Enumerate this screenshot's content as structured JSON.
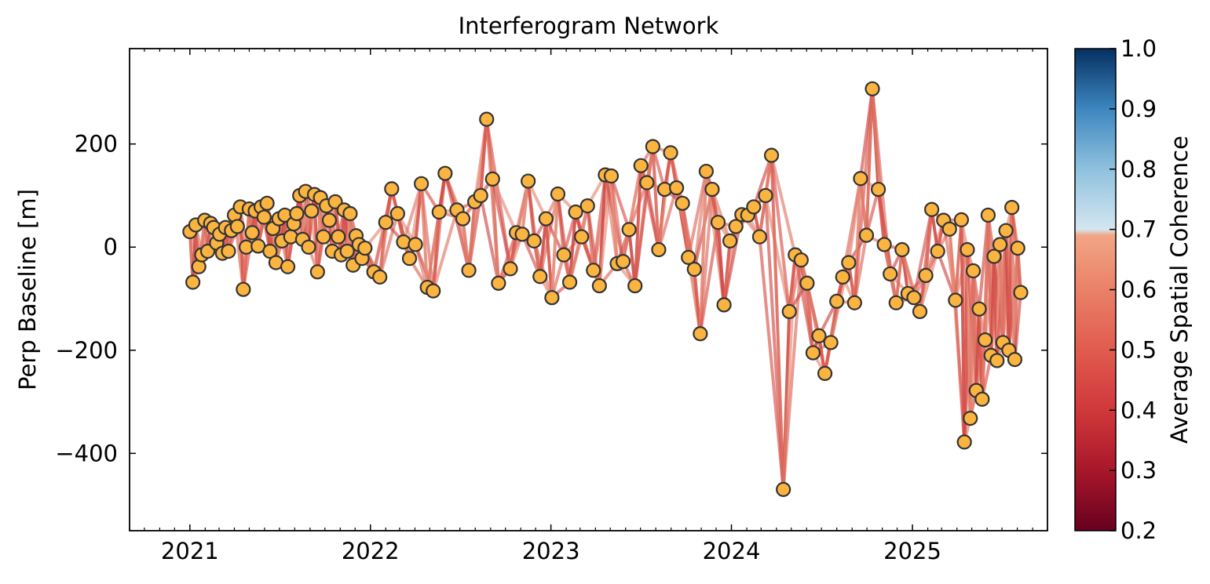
{
  "chart_data": {
    "type": "scatter",
    "title": "Interferogram Network",
    "xlabel": "",
    "ylabel": "Perp Baseline [m]",
    "xlim": [
      "2020-09-01",
      "2025-10-01"
    ],
    "ylim": [
      -550,
      385
    ],
    "x_ticks": [
      {
        "date": "2021-01-01",
        "label": "2021"
      },
      {
        "date": "2022-01-01",
        "label": "2022"
      },
      {
        "date": "2023-01-01",
        "label": "2023"
      },
      {
        "date": "2024-01-01",
        "label": "2024"
      },
      {
        "date": "2025-01-01",
        "label": "2025"
      }
    ],
    "y_ticks": [
      {
        "value": 200,
        "label": "200"
      },
      {
        "value": 0,
        "label": "0"
      },
      {
        "value": -200,
        "label": "−200"
      },
      {
        "value": -400,
        "label": "−400"
      }
    ],
    "grid": false,
    "legend": "none",
    "marker_color": "#fbb440",
    "marker_edge_color": "#333333",
    "colorbar": {
      "label": "Average Spatial Coherence",
      "range": [
        0.2,
        1.0
      ],
      "ticks": [
        {
          "value": 0.2,
          "label": "0.2"
        },
        {
          "value": 0.3,
          "label": "0.3"
        },
        {
          "value": 0.4,
          "label": "0.4"
        },
        {
          "value": 0.5,
          "label": "0.5"
        },
        {
          "value": 0.6,
          "label": "0.6"
        },
        {
          "value": 0.7,
          "label": "0.7"
        },
        {
          "value": 0.8,
          "label": "0.8"
        },
        {
          "value": 0.9,
          "label": "0.9"
        },
        {
          "value": 1.0,
          "label": "1.0"
        }
      ],
      "stops": [
        {
          "value": 0.2,
          "color": "#67001f"
        },
        {
          "value": 0.3,
          "color": "#a8172a"
        },
        {
          "value": 0.4,
          "color": "#d0383a"
        },
        {
          "value": 0.5,
          "color": "#e15b4f"
        },
        {
          "value": 0.6,
          "color": "#ea8168"
        },
        {
          "value": 0.69,
          "color": "#f2a585"
        },
        {
          "value": 0.7,
          "color": "#d4e6f1"
        },
        {
          "value": 0.8,
          "color": "#8fc1de"
        },
        {
          "value": 0.9,
          "color": "#3d86bf"
        },
        {
          "value": 1.0,
          "color": "#053061"
        }
      ]
    },
    "points": [
      {
        "date": "2021-01-01",
        "value": 30
      },
      {
        "date": "2021-01-07",
        "value": -68
      },
      {
        "date": "2021-01-13",
        "value": 43
      },
      {
        "date": "2021-01-19",
        "value": -38
      },
      {
        "date": "2021-01-25",
        "value": -15
      },
      {
        "date": "2021-01-31",
        "value": 52
      },
      {
        "date": "2021-02-06",
        "value": -8
      },
      {
        "date": "2021-02-12",
        "value": 46
      },
      {
        "date": "2021-02-18",
        "value": 38
      },
      {
        "date": "2021-02-24",
        "value": 8
      },
      {
        "date": "2021-03-02",
        "value": 25
      },
      {
        "date": "2021-03-08",
        "value": -12
      },
      {
        "date": "2021-03-14",
        "value": 38
      },
      {
        "date": "2021-03-20",
        "value": -8
      },
      {
        "date": "2021-03-26",
        "value": 32
      },
      {
        "date": "2021-04-01",
        "value": 62
      },
      {
        "date": "2021-04-07",
        "value": 40
      },
      {
        "date": "2021-04-13",
        "value": 78
      },
      {
        "date": "2021-04-19",
        "value": -82
      },
      {
        "date": "2021-04-25",
        "value": 0
      },
      {
        "date": "2021-05-01",
        "value": 74
      },
      {
        "date": "2021-05-07",
        "value": 28
      },
      {
        "date": "2021-05-13",
        "value": 70
      },
      {
        "date": "2021-05-19",
        "value": 2
      },
      {
        "date": "2021-05-25",
        "value": 78
      },
      {
        "date": "2021-05-31",
        "value": 58
      },
      {
        "date": "2021-06-06",
        "value": 85
      },
      {
        "date": "2021-06-12",
        "value": -8
      },
      {
        "date": "2021-06-18",
        "value": 36
      },
      {
        "date": "2021-06-24",
        "value": -30
      },
      {
        "date": "2021-06-30",
        "value": 55
      },
      {
        "date": "2021-07-06",
        "value": 12
      },
      {
        "date": "2021-07-12",
        "value": 62
      },
      {
        "date": "2021-07-18",
        "value": -38
      },
      {
        "date": "2021-07-24",
        "value": 20
      },
      {
        "date": "2021-07-30",
        "value": 45
      },
      {
        "date": "2021-08-05",
        "value": 65
      },
      {
        "date": "2021-08-11",
        "value": 100
      },
      {
        "date": "2021-08-17",
        "value": 15
      },
      {
        "date": "2021-08-23",
        "value": 108
      },
      {
        "date": "2021-08-29",
        "value": 0
      },
      {
        "date": "2021-09-04",
        "value": 70
      },
      {
        "date": "2021-09-10",
        "value": 102
      },
      {
        "date": "2021-09-16",
        "value": -48
      },
      {
        "date": "2021-09-22",
        "value": 96
      },
      {
        "date": "2021-09-28",
        "value": 20
      },
      {
        "date": "2021-10-04",
        "value": 80
      },
      {
        "date": "2021-10-10",
        "value": 52
      },
      {
        "date": "2021-10-16",
        "value": -8
      },
      {
        "date": "2021-10-22",
        "value": 88
      },
      {
        "date": "2021-10-28",
        "value": 20
      },
      {
        "date": "2021-11-03",
        "value": -15
      },
      {
        "date": "2021-11-09",
        "value": 72
      },
      {
        "date": "2021-11-15",
        "value": -8
      },
      {
        "date": "2021-11-21",
        "value": 65
      },
      {
        "date": "2021-11-27",
        "value": -35
      },
      {
        "date": "2021-12-03",
        "value": 22
      },
      {
        "date": "2021-12-09",
        "value": 5
      },
      {
        "date": "2021-12-15",
        "value": -22
      },
      {
        "date": "2021-12-21",
        "value": -2
      },
      {
        "date": "2022-01-08",
        "value": -48
      },
      {
        "date": "2022-01-20",
        "value": -58
      },
      {
        "date": "2022-02-01",
        "value": 48
      },
      {
        "date": "2022-02-13",
        "value": 113
      },
      {
        "date": "2022-02-25",
        "value": 65
      },
      {
        "date": "2022-03-09",
        "value": 10
      },
      {
        "date": "2022-03-21",
        "value": -22
      },
      {
        "date": "2022-04-02",
        "value": 5
      },
      {
        "date": "2022-04-14",
        "value": 123
      },
      {
        "date": "2022-04-26",
        "value": -78
      },
      {
        "date": "2022-05-08",
        "value": -85
      },
      {
        "date": "2022-05-20",
        "value": 68
      },
      {
        "date": "2022-06-01",
        "value": 143
      },
      {
        "date": "2022-06-25",
        "value": 72
      },
      {
        "date": "2022-07-07",
        "value": 55
      },
      {
        "date": "2022-07-19",
        "value": -45
      },
      {
        "date": "2022-07-31",
        "value": 88
      },
      {
        "date": "2022-08-12",
        "value": 100
      },
      {
        "date": "2022-08-24",
        "value": 248
      },
      {
        "date": "2022-09-05",
        "value": 132
      },
      {
        "date": "2022-09-17",
        "value": -70
      },
      {
        "date": "2022-10-11",
        "value": -42
      },
      {
        "date": "2022-10-23",
        "value": 28
      },
      {
        "date": "2022-11-04",
        "value": 25
      },
      {
        "date": "2022-11-16",
        "value": 128
      },
      {
        "date": "2022-11-28",
        "value": 12
      },
      {
        "date": "2022-12-10",
        "value": -57
      },
      {
        "date": "2022-12-22",
        "value": 55
      },
      {
        "date": "2023-01-03",
        "value": -98
      },
      {
        "date": "2023-01-15",
        "value": 103
      },
      {
        "date": "2023-01-27",
        "value": -15
      },
      {
        "date": "2023-02-08",
        "value": -68
      },
      {
        "date": "2023-02-20",
        "value": 68
      },
      {
        "date": "2023-03-04",
        "value": 20
      },
      {
        "date": "2023-03-16",
        "value": 80
      },
      {
        "date": "2023-03-28",
        "value": -45
      },
      {
        "date": "2023-04-09",
        "value": -75
      },
      {
        "date": "2023-04-21",
        "value": 140
      },
      {
        "date": "2023-05-03",
        "value": 138
      },
      {
        "date": "2023-05-15",
        "value": -32
      },
      {
        "date": "2023-05-27",
        "value": -28
      },
      {
        "date": "2023-06-08",
        "value": 34
      },
      {
        "date": "2023-06-20",
        "value": -75
      },
      {
        "date": "2023-07-02",
        "value": 158
      },
      {
        "date": "2023-07-14",
        "value": 125
      },
      {
        "date": "2023-07-26",
        "value": 195
      },
      {
        "date": "2023-08-07",
        "value": -5
      },
      {
        "date": "2023-08-19",
        "value": 112
      },
      {
        "date": "2023-08-31",
        "value": 183
      },
      {
        "date": "2023-09-12",
        "value": 115
      },
      {
        "date": "2023-09-24",
        "value": 85
      },
      {
        "date": "2023-10-06",
        "value": -20
      },
      {
        "date": "2023-10-18",
        "value": -43
      },
      {
        "date": "2023-10-30",
        "value": -168
      },
      {
        "date": "2023-11-11",
        "value": 147
      },
      {
        "date": "2023-11-23",
        "value": 112
      },
      {
        "date": "2023-12-05",
        "value": 48
      },
      {
        "date": "2023-12-17",
        "value": -112
      },
      {
        "date": "2023-12-29",
        "value": 12
      },
      {
        "date": "2024-01-10",
        "value": 40
      },
      {
        "date": "2024-01-22",
        "value": 63
      },
      {
        "date": "2024-02-03",
        "value": 62
      },
      {
        "date": "2024-02-15",
        "value": 78
      },
      {
        "date": "2024-02-27",
        "value": 20
      },
      {
        "date": "2024-03-10",
        "value": 100
      },
      {
        "date": "2024-03-22",
        "value": 178
      },
      {
        "date": "2024-04-15",
        "value": -470
      },
      {
        "date": "2024-04-27",
        "value": -125
      },
      {
        "date": "2024-05-09",
        "value": -15
      },
      {
        "date": "2024-05-21",
        "value": -25
      },
      {
        "date": "2024-06-02",
        "value": -70
      },
      {
        "date": "2024-06-14",
        "value": -205
      },
      {
        "date": "2024-06-26",
        "value": -172
      },
      {
        "date": "2024-07-08",
        "value": -245
      },
      {
        "date": "2024-07-20",
        "value": -185
      },
      {
        "date": "2024-08-01",
        "value": -105
      },
      {
        "date": "2024-08-13",
        "value": -58
      },
      {
        "date": "2024-08-25",
        "value": -30
      },
      {
        "date": "2024-09-06",
        "value": -108
      },
      {
        "date": "2024-09-18",
        "value": 133
      },
      {
        "date": "2024-09-30",
        "value": 23
      },
      {
        "date": "2024-10-12",
        "value": 307
      },
      {
        "date": "2024-10-24",
        "value": 112
      },
      {
        "date": "2024-11-05",
        "value": 5
      },
      {
        "date": "2024-11-17",
        "value": -52
      },
      {
        "date": "2024-11-29",
        "value": -108
      },
      {
        "date": "2024-12-11",
        "value": -5
      },
      {
        "date": "2024-12-23",
        "value": -90
      },
      {
        "date": "2025-01-04",
        "value": -98
      },
      {
        "date": "2025-01-16",
        "value": -125
      },
      {
        "date": "2025-01-28",
        "value": -55
      },
      {
        "date": "2025-02-09",
        "value": 73
      },
      {
        "date": "2025-02-21",
        "value": -8
      },
      {
        "date": "2025-03-05",
        "value": 52
      },
      {
        "date": "2025-03-17",
        "value": 35
      },
      {
        "date": "2025-03-29",
        "value": -103
      },
      {
        "date": "2025-04-10",
        "value": 53
      },
      {
        "date": "2025-04-16",
        "value": -378
      },
      {
        "date": "2025-04-22",
        "value": -5
      },
      {
        "date": "2025-04-28",
        "value": -332
      },
      {
        "date": "2025-05-04",
        "value": -46
      },
      {
        "date": "2025-05-10",
        "value": -278
      },
      {
        "date": "2025-05-16",
        "value": -120
      },
      {
        "date": "2025-05-22",
        "value": -295
      },
      {
        "date": "2025-05-28",
        "value": -180
      },
      {
        "date": "2025-06-03",
        "value": 62
      },
      {
        "date": "2025-06-09",
        "value": -210
      },
      {
        "date": "2025-06-15",
        "value": -18
      },
      {
        "date": "2025-06-21",
        "value": -220
      },
      {
        "date": "2025-06-27",
        "value": 5
      },
      {
        "date": "2025-07-03",
        "value": -185
      },
      {
        "date": "2025-07-09",
        "value": 32
      },
      {
        "date": "2025-07-15",
        "value": -200
      },
      {
        "date": "2025-07-21",
        "value": 77
      },
      {
        "date": "2025-07-27",
        "value": -218
      },
      {
        "date": "2025-08-02",
        "value": -2
      },
      {
        "date": "2025-08-08",
        "value": -88
      }
    ]
  }
}
